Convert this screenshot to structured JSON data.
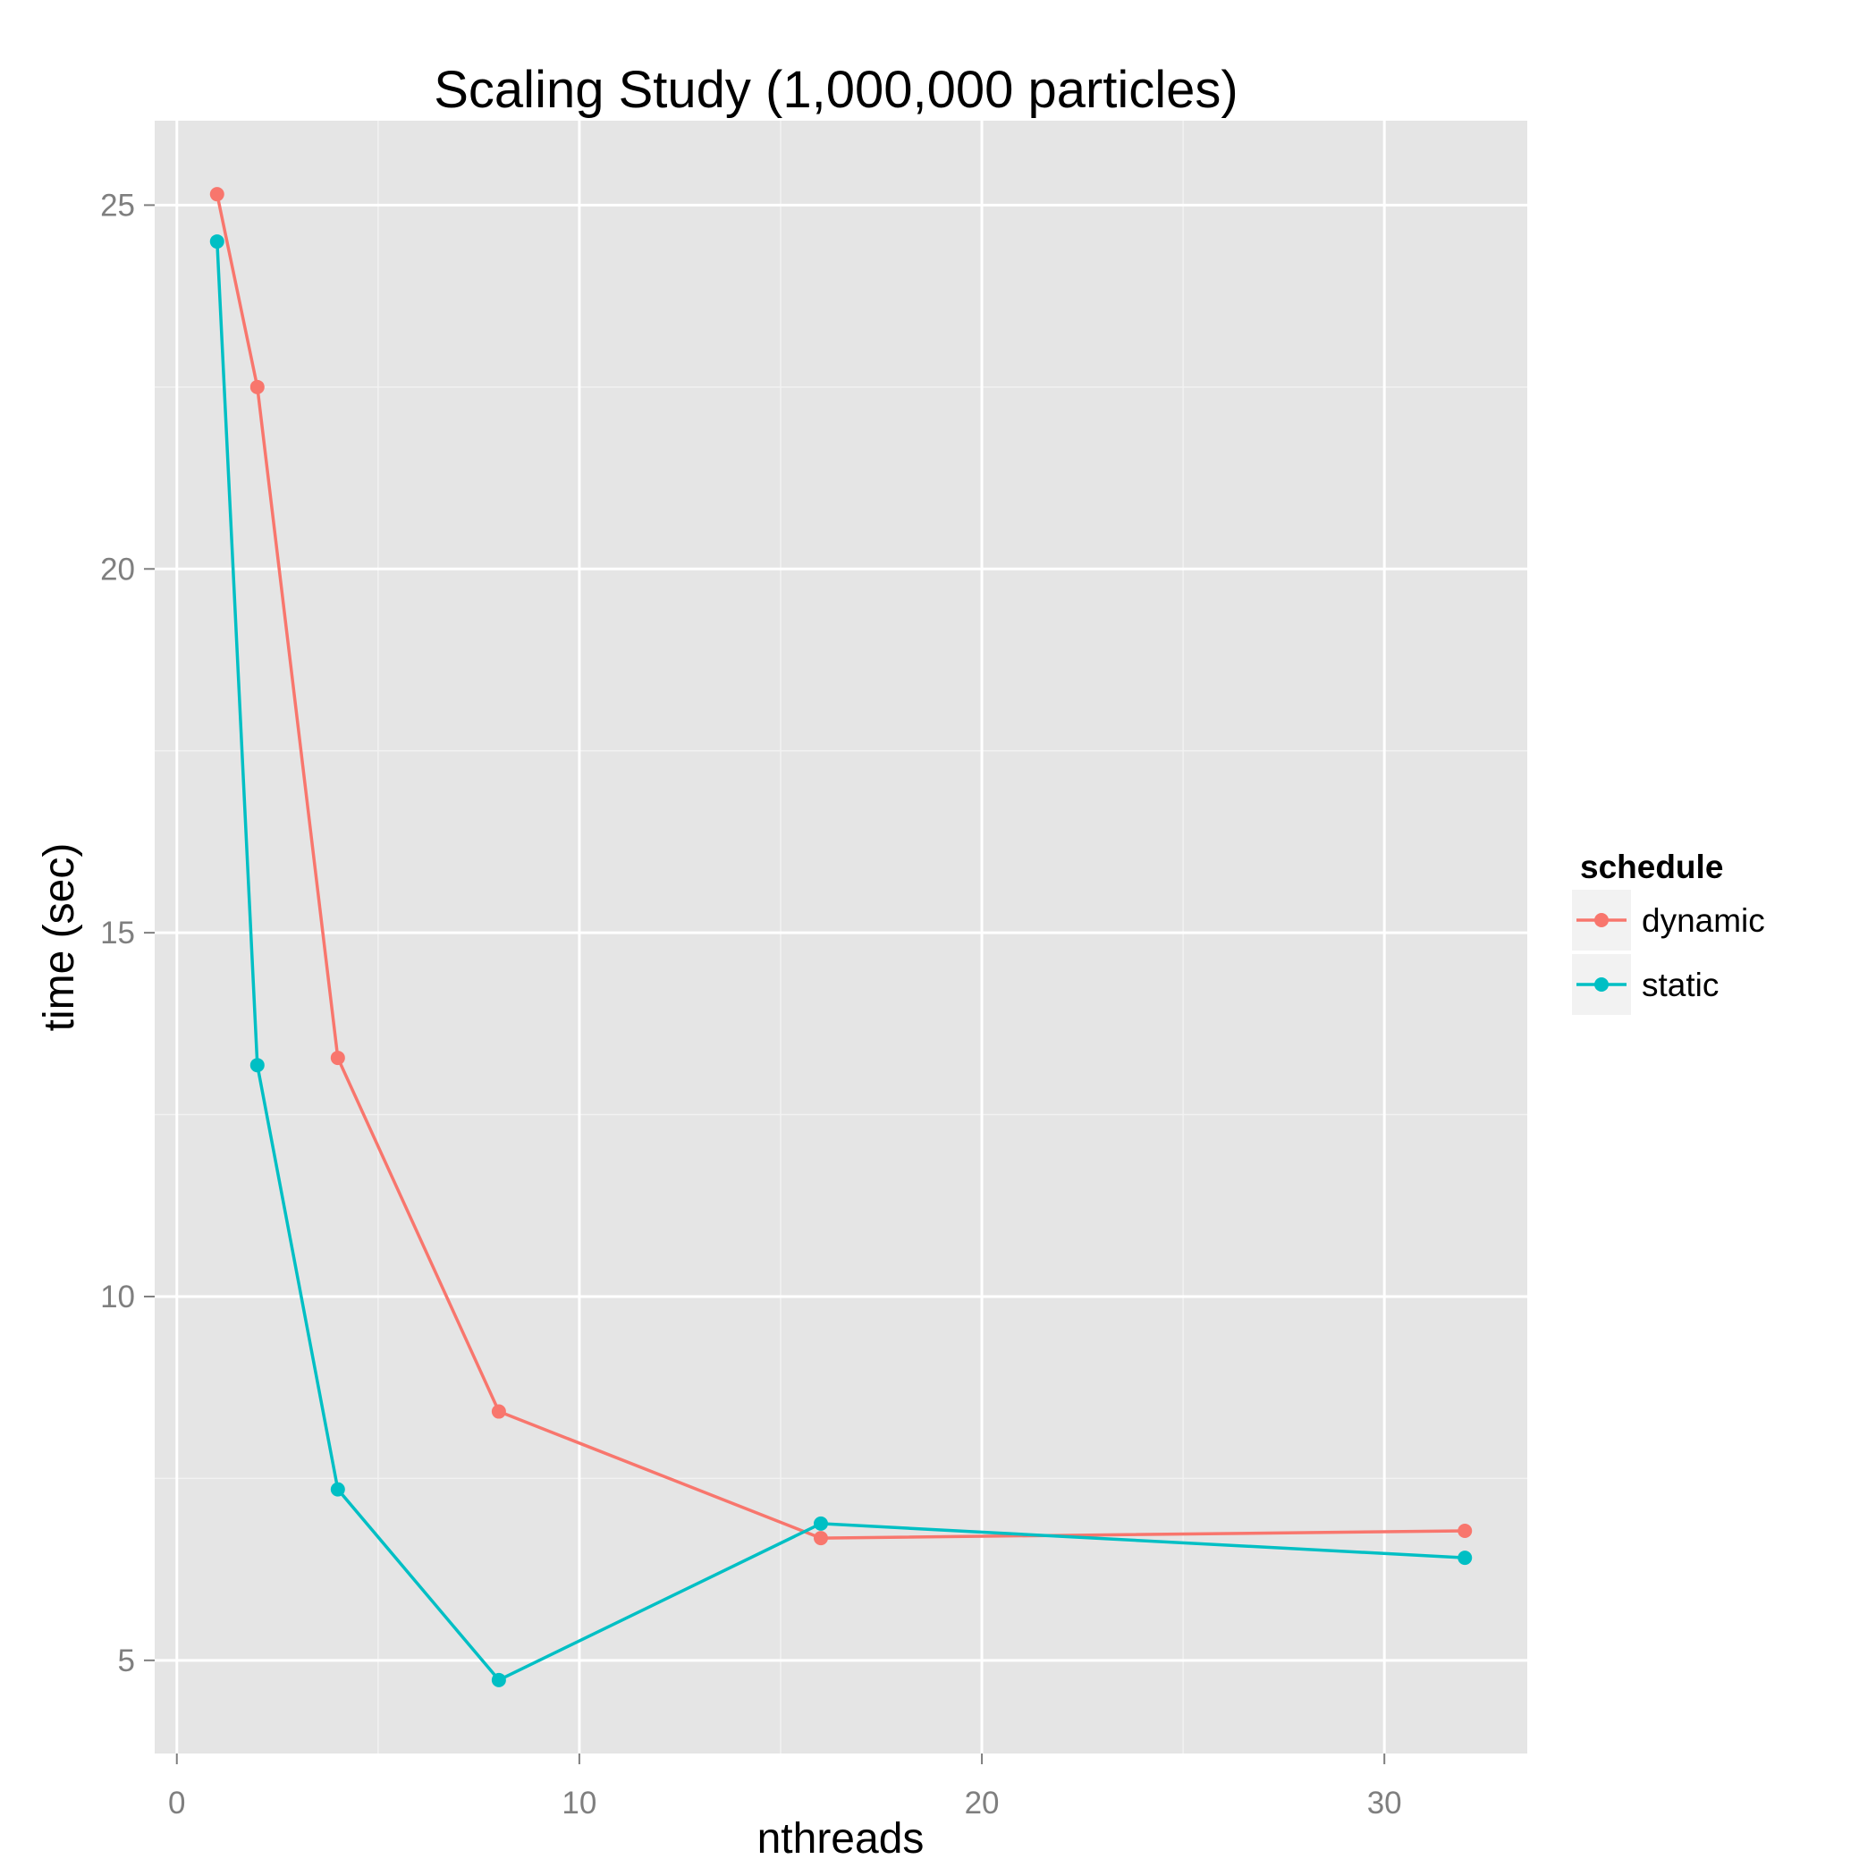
{
  "chart_data": {
    "type": "line",
    "title": "Scaling Study (1,000,000 particles)",
    "xlabel": "nthreads",
    "ylabel": "time (sec)",
    "x_ticks": [
      0,
      10,
      20,
      30
    ],
    "y_ticks": [
      5,
      10,
      15,
      20,
      25
    ],
    "xlim": [
      -0.55,
      33.55
    ],
    "ylim": [
      3.72,
      26.16
    ],
    "grid": true,
    "legend": {
      "title": "schedule",
      "position": "right"
    },
    "x": [
      1,
      2,
      4,
      8,
      16,
      32
    ],
    "series": [
      {
        "name": "dynamic",
        "color": "#F8766D",
        "values": [
          25.15,
          22.5,
          13.28,
          8.42,
          6.68,
          6.78
        ]
      },
      {
        "name": "static",
        "color": "#00BFC4",
        "values": [
          24.5,
          13.18,
          7.35,
          4.73,
          6.88,
          6.41
        ]
      }
    ]
  }
}
